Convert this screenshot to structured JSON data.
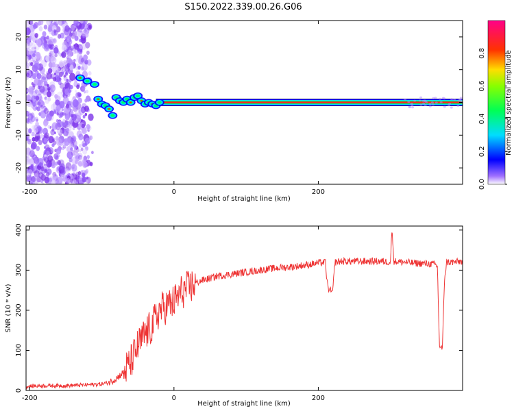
{
  "title": "S150.2022.339.00.26.G06",
  "colors": {
    "snr_line": "#ee3333",
    "axis": "#000000",
    "noise": "#8a2be2",
    "track": "#ff2020"
  },
  "colorbar": {
    "label": "Normalized spectral amplitude",
    "ticks": [
      "0.0",
      "0.2",
      "0.4",
      "0.6",
      "0.8"
    ],
    "tick_values": [
      0.0,
      0.2,
      0.4,
      0.6,
      0.8
    ],
    "range": [
      0,
      1
    ]
  },
  "chart_data": [
    {
      "type": "heatmap",
      "title": "",
      "xlabel": "Height of straight line (km)",
      "ylabel": "Frequency (Hz)",
      "xlim": [
        -205,
        400
      ],
      "ylim": [
        -25,
        25
      ],
      "x_ticks": [
        -200,
        0,
        200
      ],
      "y_ticks": [
        -20,
        -10,
        0,
        10,
        20
      ],
      "x_tick_labels": [
        "-200",
        "0",
        "200"
      ],
      "y_tick_labels": [
        "-20",
        "-10",
        "0",
        "10",
        "20"
      ],
      "noise_region_x": [
        -205,
        -112
      ],
      "track": [
        {
          "x": -130,
          "y": 7.5
        },
        {
          "x": -120,
          "y": 6.5
        },
        {
          "x": -110,
          "y": 5.5
        },
        {
          "x": -105,
          "y": 1.0
        },
        {
          "x": -100,
          "y": -0.5
        },
        {
          "x": -95,
          "y": -1.0
        },
        {
          "x": -90,
          "y": -2.0
        },
        {
          "x": -85,
          "y": -4.0
        },
        {
          "x": -80,
          "y": 1.5
        },
        {
          "x": -75,
          "y": 0.5
        },
        {
          "x": -70,
          "y": 0.0
        },
        {
          "x": -65,
          "y": 1.0
        },
        {
          "x": -60,
          "y": 0.0
        },
        {
          "x": -55,
          "y": 1.5
        },
        {
          "x": -50,
          "y": 2.0
        },
        {
          "x": -45,
          "y": 0.5
        },
        {
          "x": -40,
          "y": -0.5
        },
        {
          "x": -35,
          "y": 0.0
        },
        {
          "x": -30,
          "y": -0.5
        },
        {
          "x": -25,
          "y": -1.0
        },
        {
          "x": -20,
          "y": 0.0
        },
        {
          "x": 0,
          "y": 0.0
        },
        {
          "x": 100,
          "y": 0.0
        },
        {
          "x": 200,
          "y": 0.0
        },
        {
          "x": 300,
          "y": 0.0
        },
        {
          "x": 400,
          "y": 0.0
        }
      ],
      "steady_track_y": 0
    },
    {
      "type": "line",
      "title": "",
      "xlabel": "Height of straight line (km)",
      "ylabel": "SNR (10 * v/v)",
      "xlim": [
        -205,
        400
      ],
      "ylim": [
        0,
        410
      ],
      "x_ticks": [
        -200,
        0,
        200
      ],
      "y_ticks": [
        0,
        100,
        200,
        300,
        400
      ],
      "x_tick_labels": [
        "-200",
        "0",
        "200"
      ],
      "y_tick_labels": [
        "0",
        "100",
        "200",
        "300",
        "400"
      ],
      "series": [
        {
          "x": [
            -205,
            -180,
            -150,
            -120,
            -100,
            -90,
            -80,
            -70,
            -60,
            -50,
            -40,
            -30,
            -20,
            -10,
            0,
            10,
            20,
            30,
            40,
            60,
            80,
            100,
            120,
            140,
            160,
            180,
            200,
            210,
            212,
            215,
            220,
            223,
            225,
            230,
            260,
            290,
            300,
            302,
            305,
            330,
            360,
            365,
            368,
            372,
            375,
            378,
            380,
            390,
            400
          ],
          "y": [
            10,
            12,
            12,
            14,
            16,
            20,
            30,
            45,
            70,
            110,
            140,
            160,
            200,
            210,
            220,
            245,
            255,
            268,
            275,
            285,
            290,
            295,
            300,
            305,
            308,
            312,
            318,
            320,
            270,
            250,
            245,
            320,
            320,
            322,
            322,
            322,
            320,
            400,
            322,
            318,
            315,
            310,
            110,
            105,
            280,
            320,
            320,
            320,
            322
          ]
        }
      ]
    }
  ]
}
